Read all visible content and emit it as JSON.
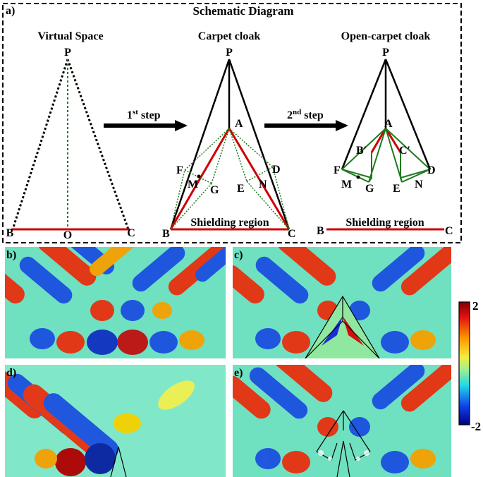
{
  "top_panel": {
    "panel_label": "a)",
    "title": "Schematic Diagram",
    "stages": [
      {
        "title": "Virtual Space",
        "points": [
          "P",
          "B",
          "O",
          "C"
        ]
      },
      {
        "title": "Carpet cloak",
        "points": [
          "P",
          "A",
          "F",
          "M",
          "G",
          "E",
          "N",
          "D",
          "B",
          "C"
        ],
        "region_label": "Shielding region"
      },
      {
        "title": "Open-carpet cloak",
        "points": [
          "P",
          "A",
          "B′",
          "C′",
          "F",
          "M",
          "G",
          "E",
          "N",
          "D",
          "B",
          "C"
        ],
        "region_label": "Shielding region"
      }
    ],
    "steps": [
      {
        "main": "1",
        "sup": "st",
        "rest": " step"
      },
      {
        "main": "2",
        "sup": "nd",
        "rest": " step"
      }
    ]
  },
  "field_panels": [
    {
      "label": "b)"
    },
    {
      "label": "c)"
    },
    {
      "label": "d)"
    },
    {
      "label": "e)"
    }
  ],
  "colorbar": {
    "max_label": "2",
    "min_label": "-2",
    "range": [
      -2,
      2
    ]
  },
  "colors": {
    "red_line": "#cc0000",
    "green_line": "#1e7a1e",
    "black_line": "#000000"
  }
}
